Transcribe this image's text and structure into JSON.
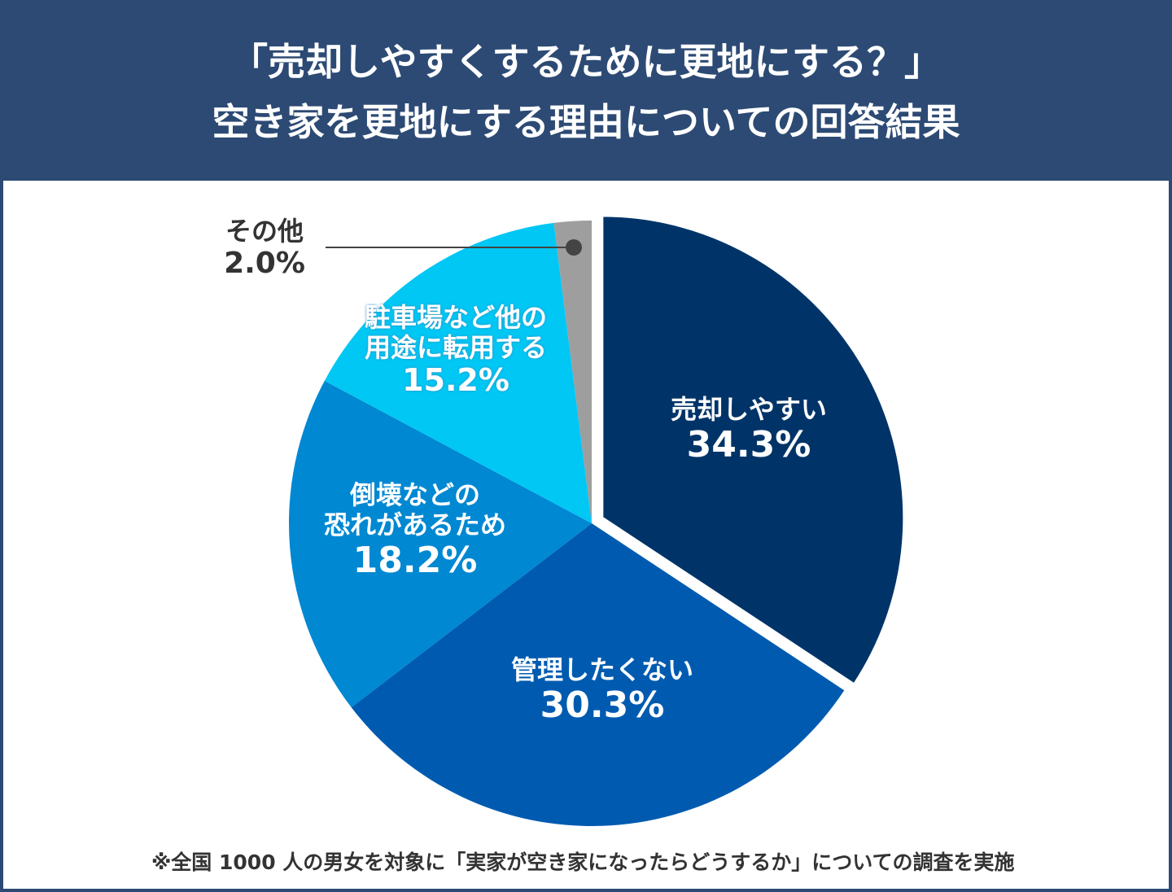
{
  "chart_data": {
    "type": "pie",
    "title": [
      "「売却しやすくするために更地にする？」",
      "空き家を更地にする理由についての回答結果"
    ],
    "slices": [
      {
        "label": [
          "売却しやすい"
        ],
        "value": 34.3,
        "display": "34.3%",
        "color": "#003468",
        "exploded": true
      },
      {
        "label": [
          "管理したくない"
        ],
        "value": 30.3,
        "display": "30.3%",
        "color": "#005bb0"
      },
      {
        "label": [
          "倒壊などの",
          "恐れがあるため"
        ],
        "value": 18.2,
        "display": "18.2%",
        "color": "#0088d2"
      },
      {
        "label": [
          "駐車場など他の",
          "用途に転用する"
        ],
        "value": 15.2,
        "display": "15.2%",
        "color": "#00c7f4"
      },
      {
        "label": [
          "その他"
        ],
        "value": 2.0,
        "display": "2.0%",
        "color": "#9e9e9e"
      }
    ],
    "start": "top",
    "direction": "clockwise",
    "footnote": "※全国 1000 人の男女を対象に「実家が空き家になったらどうするか」についての調査を実施"
  }
}
